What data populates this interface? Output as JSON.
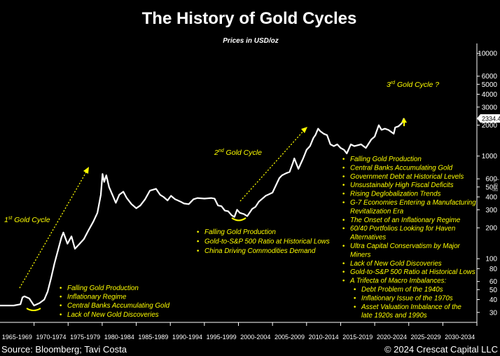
{
  "chart_data": {
    "type": "line",
    "title": "The History of Gold Cycles",
    "subtitle": "Prices in USD/oz",
    "y_scale": "log",
    "y_scale_label": "Log",
    "ylim": [
      24,
      12500
    ],
    "xlim": [
      1965,
      2035
    ],
    "y_ticks": [
      30,
      40,
      50,
      60,
      80,
      100,
      200,
      300,
      400,
      500,
      600,
      1000,
      2000,
      3000,
      4000,
      5000,
      6000,
      10000
    ],
    "x_tick_labels": [
      "1965-1969",
      "1970-1974",
      "1975-1979",
      "1980-1984",
      "1985-1989",
      "1990-1994",
      "1995-1999",
      "2000-2004",
      "2005-2009",
      "2010-2014",
      "2015-2019",
      "2020-2024",
      "2025-2029",
      "2030-2034"
    ],
    "last_value_label": "2334.45",
    "series": [
      {
        "color": "#ffffff",
        "x": [
          1965,
          1967,
          1968,
          1968.3,
          1968.6,
          1969.3,
          1970,
          1970.8,
          1971.5,
          1972,
          1972.5,
          1973,
          1973.5,
          1974,
          1974.3,
          1974.9,
          1975.5,
          1976,
          1976.7,
          1977.3,
          1978,
          1978.7,
          1979.3,
          1979.8,
          1980.05,
          1980.3,
          1980.6,
          1981,
          1981.5,
          1982,
          1982.5,
          1983.1,
          1983.6,
          1984.3,
          1985,
          1985.6,
          1986.3,
          1987,
          1987.9,
          1988.5,
          1989,
          1989.6,
          1990.1,
          1990.7,
          1991.5,
          1992,
          1992.7,
          1993.4,
          1994,
          1995,
          1996,
          1996.5,
          1997,
          1997.5,
          1998,
          1998.5,
          1999,
          1999.4,
          1999.8,
          2000.2,
          2000.8,
          2001.3,
          2002,
          2002.5,
          2003,
          2004,
          2005,
          2006,
          2006.4,
          2007,
          2007.5,
          2008,
          2008.2,
          2008.8,
          2009.5,
          2010,
          2010.5,
          2011,
          2011.3,
          2011.7,
          2012,
          2012.5,
          2013,
          2013.5,
          2014,
          2014.5,
          2015,
          2015.5,
          2015.9,
          2016.5,
          2017,
          2018,
          2018.7,
          2019.5,
          2020,
          2020.6,
          2021,
          2021.5,
          2022,
          2022.8,
          2023,
          2023.5,
          2024,
          2024.3
        ],
        "values": [
          35,
          35,
          36,
          42,
          43,
          41,
          35,
          37,
          40,
          48,
          65,
          90,
          120,
          160,
          180,
          140,
          165,
          125,
          140,
          155,
          190,
          230,
          280,
          420,
          670,
          560,
          650,
          500,
          420,
          350,
          420,
          450,
          390,
          340,
          310,
          330,
          380,
          460,
          480,
          420,
          400,
          370,
          410,
          380,
          360,
          345,
          340,
          380,
          390,
          385,
          390,
          385,
          330,
          325,
          295,
          290,
          265,
          255,
          300,
          280,
          272,
          260,
          305,
          320,
          360,
          410,
          440,
          610,
          650,
          680,
          700,
          860,
          950,
          750,
          950,
          1150,
          1250,
          1500,
          1600,
          1850,
          1750,
          1650,
          1600,
          1300,
          1250,
          1300,
          1200,
          1150,
          1060,
          1300,
          1250,
          1300,
          1200,
          1450,
          1550,
          2000,
          1800,
          1850,
          1800,
          1650,
          1900,
          1950,
          2100,
          2334.45
        ]
      }
    ],
    "cycles": [
      {
        "label": "1st Gold Cycle",
        "text_main": "1",
        "text_sup": "st",
        "text_rest": " Gold Cycle"
      },
      {
        "label": "2nd Gold Cycle",
        "text_main": "2",
        "text_sup": "nd",
        "text_rest": " Gold Cycle"
      },
      {
        "label": "3rd Gold Cycle ?",
        "text_main": "3",
        "text_sup": "rd",
        "text_rest": " Gold Cycle ?"
      }
    ],
    "annotations": {
      "cycle1_bullets": [
        "Falling Gold Production",
        "Inflationary Regime",
        "Central Banks Accumulating Gold",
        "Lack of New Gold Discoveries"
      ],
      "cycle2_bullets": [
        "Falling Gold Production",
        "Gold-to-S&P 500 Ratio at Historical Lows",
        "China Driving Commodities Demand"
      ],
      "cycle3_bullets": [
        {
          "lines": [
            "Falling Gold Production"
          ],
          "level": 1
        },
        {
          "lines": [
            "Central Banks Accumulating Gold"
          ],
          "level": 1
        },
        {
          "lines": [
            "Government Debt at Historical Levels"
          ],
          "level": 1
        },
        {
          "lines": [
            "Unsustainably High Fiscal Deficits"
          ],
          "level": 1
        },
        {
          "lines": [
            "Rising Deglobalization Trends"
          ],
          "level": 1
        },
        {
          "lines": [
            "G-7 Economies Entering a Manufacturing",
            "Revitalization Era"
          ],
          "level": 1
        },
        {
          "lines": [
            "The Onset of an Inflationary Regime"
          ],
          "level": 1
        },
        {
          "lines": [
            "60/40 Portfolios Looking for Haven",
            "Alternatives"
          ],
          "level": 1
        },
        {
          "lines": [
            "Ultra Capital Conservatism by Major",
            "Miners"
          ],
          "level": 1
        },
        {
          "lines": [
            "Lack of New Gold Discoveries"
          ],
          "level": 1
        },
        {
          "lines": [
            "Gold-to-S&P 500 Ratio at Historical Lows"
          ],
          "level": 1
        },
        {
          "lines": [
            "A Trifecta of Macro Imbalances:"
          ],
          "level": 1
        },
        {
          "lines": [
            "Debt Problem of the 1940s"
          ],
          "level": 2
        },
        {
          "lines": [
            "Inflationary Issue of the 1970s"
          ],
          "level": 2
        },
        {
          "lines": [
            "Asset Valuation Imbalance of the",
            "late 1920s and 1990s"
          ],
          "level": 2
        }
      ]
    },
    "grid": false,
    "colors": {
      "line": "#ffffff",
      "annotation": "#ffff00",
      "background": "#000000"
    }
  },
  "footer": {
    "source": "Source: Bloomberg; Tavi Costa",
    "copyright": "© 2024 Crescat Capital LLC"
  }
}
